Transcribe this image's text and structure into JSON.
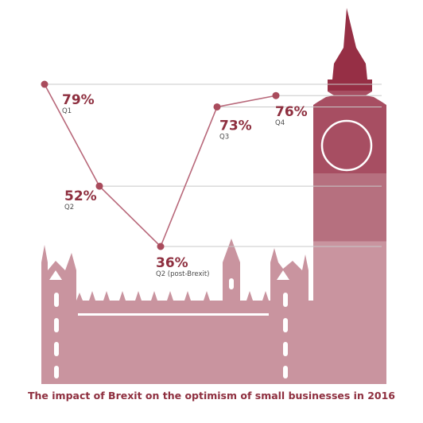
{
  "chart_data": {
    "type": "line",
    "title": "The impact of Brexit on the optimism of small businesses in 2016",
    "categories": [
      "Q1",
      "Q2",
      "Q2 (post-Brexit)",
      "Q3",
      "Q4"
    ],
    "values": [
      79,
      52,
      36,
      73,
      76
    ],
    "value_labels": [
      "79%",
      "52%",
      "36%",
      "73%",
      "76%"
    ],
    "unit": "%",
    "grid": false,
    "colors": {
      "line": "#b8687a",
      "marker": "#a94b5c",
      "label": "#8e2f3f",
      "guide": "#c8c8c8"
    }
  },
  "illustration": {
    "name": "houses-of-parliament-big-ben",
    "colors": {
      "top": "#962f45",
      "band1": "#a74e62",
      "band2": "#b6707f",
      "base": "#c9949f"
    }
  }
}
